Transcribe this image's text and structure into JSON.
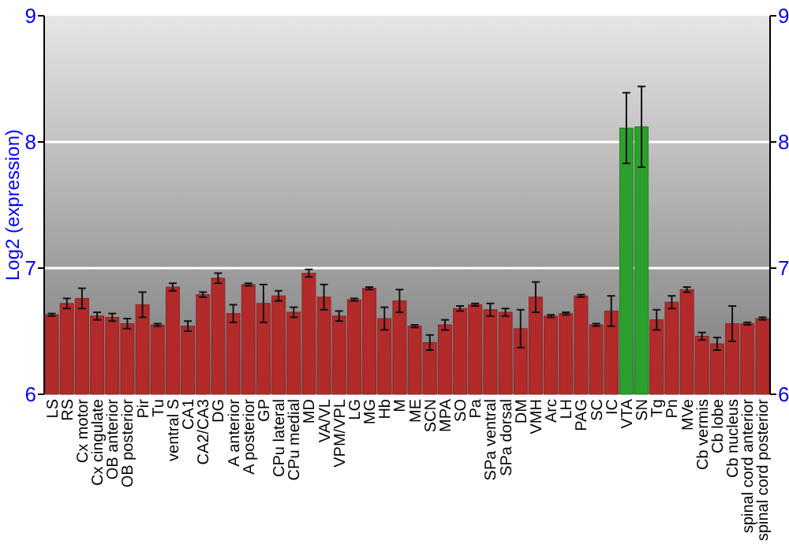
{
  "chart_data": {
    "type": "bar",
    "ylabel": "Log2 (expression)",
    "categories": [
      "LS",
      "RS",
      "Cx motor",
      "Cx cingulate",
      "OB anterior",
      "OB posterior",
      "Pir",
      "Tu",
      "ventral S",
      "CA1",
      "CA2/CA3",
      "DG",
      "A anterior",
      "A posterior",
      "GP",
      "CPu lateral",
      "CPu medial",
      "MD",
      "VA/VL",
      "VPM/VPL",
      "LG",
      "MG",
      "Hb",
      "M",
      "ME",
      "SCN",
      "MPA",
      "SO",
      "Pa",
      "SPa ventral",
      "SPa dorsal",
      "DM",
      "VMH",
      "Arc",
      "LH",
      "PAG",
      "SC",
      "IC",
      "VTA",
      "SN",
      "Tg",
      "Pn",
      "MVe",
      "Cb vermis",
      "Cb lobe",
      "Cb nucleus",
      "spinal cord anterior",
      "spinal cord posterior"
    ],
    "values": [
      6.63,
      6.72,
      6.76,
      6.62,
      6.61,
      6.56,
      6.71,
      6.55,
      6.85,
      6.54,
      6.79,
      6.92,
      6.64,
      6.87,
      6.72,
      6.78,
      6.65,
      6.96,
      6.77,
      6.62,
      6.75,
      6.84,
      6.6,
      6.74,
      6.54,
      6.41,
      6.55,
      6.68,
      6.71,
      6.67,
      6.65,
      6.52,
      6.77,
      6.62,
      6.64,
      6.78,
      6.55,
      6.66,
      8.11,
      8.12,
      6.59,
      6.73,
      6.83,
      6.46,
      6.4,
      6.56,
      6.56,
      6.6
    ],
    "errors": [
      0.01,
      0.04,
      0.08,
      0.03,
      0.03,
      0.04,
      0.1,
      0.01,
      0.03,
      0.04,
      0.02,
      0.04,
      0.07,
      0.01,
      0.15,
      0.04,
      0.04,
      0.03,
      0.1,
      0.04,
      0.01,
      0.01,
      0.09,
      0.09,
      0.01,
      0.06,
      0.04,
      0.02,
      0.01,
      0.05,
      0.03,
      0.15,
      0.12,
      0.01,
      0.01,
      0.01,
      0.01,
      0.12,
      0.28,
      0.32,
      0.08,
      0.05,
      0.02,
      0.03,
      0.05,
      0.14,
      0.01,
      0.01
    ],
    "colors": [
      "#b22a2a",
      "#b22a2a",
      "#b22a2a",
      "#b22a2a",
      "#b22a2a",
      "#b22a2a",
      "#b22a2a",
      "#b22a2a",
      "#b22a2a",
      "#b22a2a",
      "#b22a2a",
      "#b22a2a",
      "#b22a2a",
      "#b22a2a",
      "#b22a2a",
      "#b22a2a",
      "#b22a2a",
      "#b22a2a",
      "#b22a2a",
      "#b22a2a",
      "#b22a2a",
      "#b22a2a",
      "#b22a2a",
      "#b22a2a",
      "#b22a2a",
      "#b22a2a",
      "#b22a2a",
      "#b22a2a",
      "#b22a2a",
      "#b22a2a",
      "#b22a2a",
      "#b22a2a",
      "#b22a2a",
      "#b22a2a",
      "#b22a2a",
      "#b22a2a",
      "#b22a2a",
      "#b22a2a",
      "#2ca02c",
      "#2ca02c",
      "#b22a2a",
      "#b22a2a",
      "#b22a2a",
      "#b22a2a",
      "#b22a2a",
      "#b22a2a",
      "#b22a2a",
      "#b22a2a"
    ],
    "ylim": [
      6,
      9
    ],
    "yticks": [
      6,
      7,
      8,
      9
    ],
    "y2lim": [
      6,
      9
    ],
    "y2ticks": [
      6,
      7,
      8,
      9
    ],
    "grid": "y"
  }
}
